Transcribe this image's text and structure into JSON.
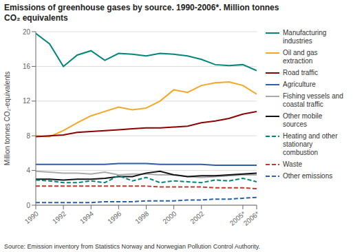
{
  "chart_data": {
    "type": "line",
    "title": "Emissions of greenhouse gases by source. 1990-2006*. Million tonnes\nCO₂ equivalents",
    "ylabel": "Million tonnes CO₂-equivalents",
    "source": "Source: Emission inventory from Statistics Norway and Norwegian Pollution Control Authority.",
    "x": [
      1990,
      1991,
      1992,
      1993,
      1994,
      1995,
      1996,
      1997,
      1998,
      1999,
      2000,
      2001,
      2002,
      2003,
      2004,
      2005,
      2006
    ],
    "series": [
      {
        "name": "Manufacturing\nindustries",
        "color": "#00857a",
        "line_style": "solid",
        "values": [
          19.8,
          18.6,
          16.0,
          17.3,
          17.8,
          16.7,
          17.5,
          17.4,
          17.2,
          17.5,
          17.4,
          17.2,
          16.8,
          16.2,
          16.1,
          16.2,
          15.5
        ]
      },
      {
        "name": "Oil and gas\nextraction",
        "color": "#f5a623",
        "line_style": "solid",
        "values": [
          8.0,
          7.9,
          8.6,
          9.5,
          10.3,
          10.8,
          11.3,
          11.0,
          11.2,
          12.0,
          13.3,
          13.0,
          13.8,
          14.1,
          14.2,
          13.8,
          12.8
        ]
      },
      {
        "name": "Road traffic",
        "color": "#8b0000",
        "line_style": "solid",
        "values": [
          7.9,
          8.0,
          8.1,
          8.4,
          8.5,
          8.6,
          8.7,
          8.8,
          8.9,
          8.9,
          9.0,
          9.1,
          9.5,
          9.7,
          10.0,
          10.5,
          10.8
        ]
      },
      {
        "name": "Agriculture",
        "color": "#2b5eab",
        "line_style": "solid",
        "values": [
          4.7,
          4.7,
          4.7,
          4.7,
          4.7,
          4.7,
          4.8,
          4.8,
          4.8,
          4.7,
          4.7,
          4.7,
          4.7,
          4.6,
          4.6,
          4.6,
          4.6
        ]
      },
      {
        "name": "Fishing vessels and\ncoastal traffic",
        "color": "#aaaaaa",
        "line_style": "solid",
        "values": [
          3.9,
          3.8,
          3.7,
          3.7,
          3.6,
          3.8,
          3.5,
          3.6,
          3.6,
          3.5,
          3.5,
          3.3,
          3.2,
          3.3,
          3.4,
          3.5,
          3.5
        ]
      },
      {
        "name": "Other mobile\nsources",
        "color": "#111111",
        "line_style": "solid",
        "values": [
          3.0,
          3.0,
          2.9,
          3.0,
          3.0,
          3.1,
          3.3,
          3.3,
          3.7,
          3.9,
          3.5,
          3.3,
          3.4,
          3.4,
          3.5,
          3.6,
          3.7
        ]
      },
      {
        "name": "Heating and other\nstationary\ncombustion",
        "color": "#00857a",
        "line_style": "dashed",
        "values": [
          2.9,
          2.8,
          2.6,
          2.6,
          2.8,
          2.6,
          3.4,
          2.8,
          3.2,
          2.6,
          2.8,
          2.7,
          2.6,
          2.9,
          2.8,
          3.1,
          2.7
        ]
      },
      {
        "name": "Waste",
        "color": "#c0392b",
        "line_style": "dashed",
        "values": [
          2.2,
          2.2,
          2.2,
          2.2,
          2.2,
          2.2,
          2.2,
          2.2,
          2.2,
          2.1,
          2.1,
          2.1,
          2.1,
          2.0,
          2.0,
          2.0,
          1.9
        ]
      },
      {
        "name": "Other emissions",
        "color": "#2b5eab",
        "line_style": "dashed",
        "values": [
          0.3,
          0.3,
          0.3,
          0.3,
          0.3,
          0.4,
          0.4,
          0.4,
          0.5,
          0.5,
          0.5,
          0.6,
          0.6,
          0.7,
          0.7,
          0.8,
          0.9
        ]
      }
    ],
    "xlim": [
      1990,
      2006
    ],
    "ylim": [
      0,
      20
    ],
    "yticks": [
      0,
      4,
      8,
      12,
      16,
      20
    ],
    "xticks": [
      1990,
      1992,
      1994,
      1996,
      1998,
      2000,
      2002,
      {
        "value": 2005,
        "label": "2005*"
      },
      {
        "value": 2006,
        "label": "2006*"
      }
    ],
    "grid": true,
    "legend": "right"
  }
}
